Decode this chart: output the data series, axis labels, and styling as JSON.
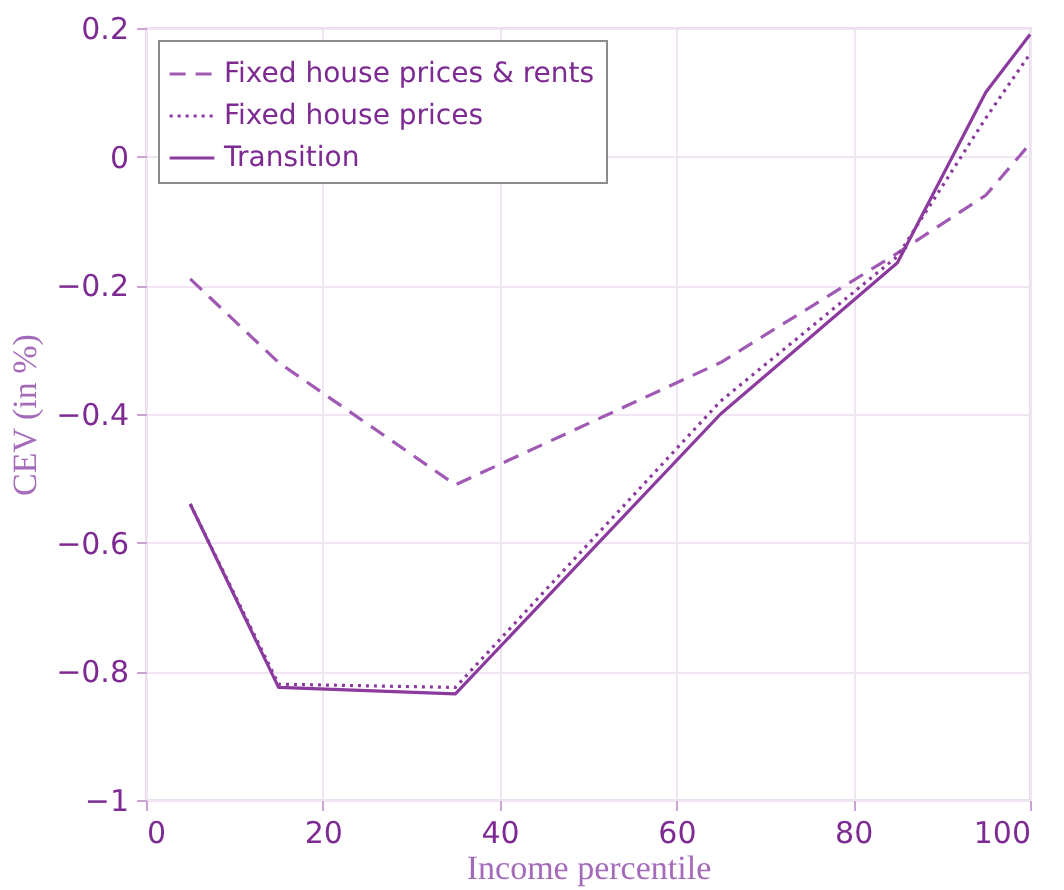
{
  "chart_data": {
    "type": "line",
    "xlabel": "Income percentile",
    "ylabel": "CEV (in %)",
    "x": [
      5,
      15,
      35,
      65,
      85,
      95,
      100
    ],
    "series": [
      {
        "name": "Fixed house prices & rents",
        "color": "#a05ab4",
        "line_style": "dashed",
        "values": [
          -0.19,
          -0.32,
          -0.51,
          -0.32,
          -0.15,
          -0.06,
          0.02
        ]
      },
      {
        "name": "Fixed house prices",
        "color": "#8b3a9e",
        "line_style": "dotted",
        "values": [
          -0.54,
          -0.82,
          -0.825,
          -0.38,
          -0.155,
          0.06,
          0.16
        ]
      },
      {
        "name": "Transition",
        "color": "#8b3a9e",
        "line_style": "solid",
        "values": [
          -0.54,
          -0.825,
          -0.835,
          -0.4,
          -0.165,
          0.1,
          0.19
        ]
      }
    ],
    "xlim": [
      0,
      100
    ],
    "xticks": [
      0,
      20,
      40,
      60,
      80,
      100
    ],
    "ylim": [
      -1,
      0.2
    ],
    "yticks": [
      -1,
      -0.8,
      -0.6,
      -0.4,
      -0.2,
      0,
      0.2
    ],
    "grid": true,
    "legend": "top left"
  }
}
